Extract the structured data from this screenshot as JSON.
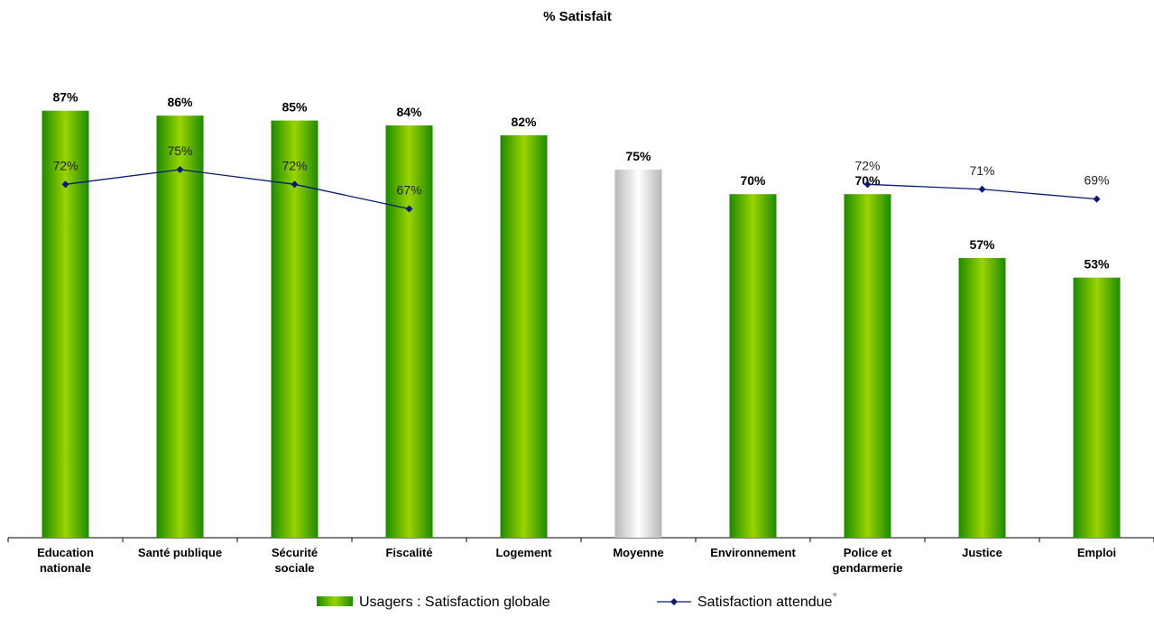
{
  "chart_data": {
    "type": "bar",
    "title": "% Satisfait",
    "categories": [
      [
        "Education",
        "nationale"
      ],
      [
        "Santé publique"
      ],
      [
        "Sécurité",
        "sociale"
      ],
      [
        "Fiscalité"
      ],
      [
        "Logement"
      ],
      [
        "Moyenne"
      ],
      [
        "Environnement"
      ],
      [
        "Police et",
        "gendarmerie"
      ],
      [
        "Justice"
      ],
      [
        "Emploi"
      ]
    ],
    "series": [
      {
        "name": "Usagers : Satisfaction globale",
        "type": "bar",
        "values": [
          87,
          86,
          85,
          84,
          82,
          75,
          70,
          70,
          57,
          53
        ],
        "labels": [
          "87%",
          "86%",
          "85%",
          "84%",
          "82%",
          "75%",
          "70%",
          "70%",
          "57%",
          "53%"
        ],
        "highlight_index": 5
      },
      {
        "name": "Satisfaction attendue",
        "type": "line",
        "values": [
          72,
          75,
          72,
          67,
          null,
          null,
          null,
          72,
          71,
          69
        ],
        "labels": [
          "72%",
          "75%",
          "72%",
          "67%",
          null,
          null,
          null,
          "72%",
          "71%",
          "69%"
        ]
      }
    ],
    "legend_asterisk": "*",
    "ylim": [
      0,
      100
    ],
    "grid": false,
    "legend_position": "bottom",
    "colors": {
      "bar_dark": "#1e8a00",
      "bar_light": "#9ad400",
      "avg_dark": "#b8b8b8",
      "avg_light": "#ffffff",
      "line": "#0a1a6e"
    }
  }
}
